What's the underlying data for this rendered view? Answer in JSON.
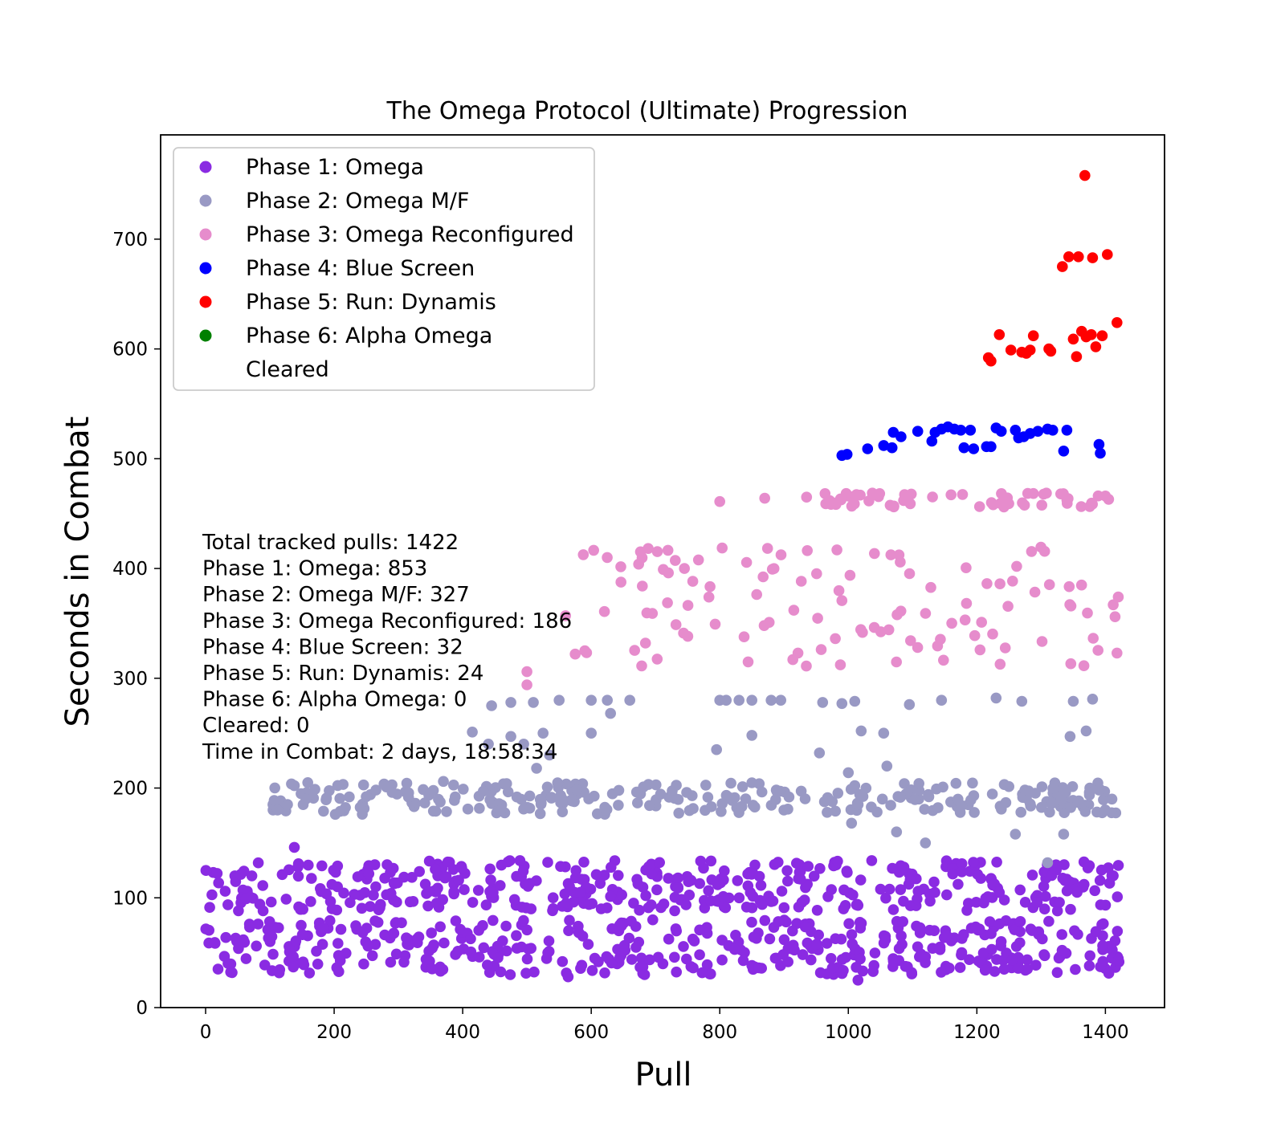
{
  "chart_data": {
    "type": "scatter",
    "title": "The Omega Protocol (Ultimate) Progression",
    "xlabel": "Pull",
    "ylabel": "Seconds in Combat",
    "xlim": [
      -70,
      1492
    ],
    "ylim": [
      0,
      795
    ],
    "xticks": [
      0,
      200,
      400,
      600,
      800,
      1000,
      1200,
      1400
    ],
    "yticks": [
      0,
      100,
      200,
      300,
      400,
      500,
      600,
      700
    ],
    "grid": false,
    "legend_position": "upper-left",
    "series": [
      {
        "name": "Phase 1: Omega",
        "color": "#8a2be2",
        "sampled": true,
        "bands": [
          {
            "count": 420,
            "x_range": [
              0,
              1422
            ],
            "y_range": [
              30,
              80
            ]
          },
          {
            "count": 400,
            "x_range": [
              0,
              1422
            ],
            "y_range": [
              88,
              134
            ]
          }
        ],
        "points": [
          [
            138,
            146
          ],
          [
            1015,
            25
          ],
          [
            564,
            28
          ],
          [
            683,
            30
          ],
          [
            1396,
            42
          ],
          [
            1410,
            45
          ],
          [
            1420,
            43
          ],
          [
            1375,
            38
          ],
          [
            975,
            36
          ]
        ]
      },
      {
        "name": "Phase 2: Omega M/F",
        "color": "#9999c4",
        "sampled": true,
        "bands": [
          {
            "count": 280,
            "x_range": [
              100,
              1422
            ],
            "y_range": [
              176,
              205
            ]
          }
        ],
        "points": [
          [
            105,
            180
          ],
          [
            112,
            180
          ],
          [
            156,
            190
          ],
          [
            370,
            206
          ],
          [
            445,
            275
          ],
          [
            475,
            278
          ],
          [
            415,
            251
          ],
          [
            440,
            240
          ],
          [
            475,
            247
          ],
          [
            495,
            240
          ],
          [
            510,
            278
          ],
          [
            515,
            218
          ],
          [
            525,
            250
          ],
          [
            535,
            230
          ],
          [
            550,
            280
          ],
          [
            600,
            280
          ],
          [
            625,
            280
          ],
          [
            630,
            268
          ],
          [
            600,
            250
          ],
          [
            660,
            280
          ],
          [
            800,
            280
          ],
          [
            810,
            280
          ],
          [
            830,
            280
          ],
          [
            850,
            280
          ],
          [
            880,
            280
          ],
          [
            895,
            280
          ],
          [
            960,
            278
          ],
          [
            990,
            277
          ],
          [
            1010,
            279
          ],
          [
            850,
            248
          ],
          [
            955,
            232
          ],
          [
            795,
            235
          ],
          [
            1000,
            214
          ],
          [
            1005,
            168
          ],
          [
            1020,
            252
          ],
          [
            1055,
            250
          ],
          [
            1060,
            220
          ],
          [
            1075,
            160
          ],
          [
            1120,
            150
          ],
          [
            1095,
            276
          ],
          [
            1145,
            280
          ],
          [
            1230,
            282
          ],
          [
            1270,
            279
          ],
          [
            1260,
            158
          ],
          [
            1310,
            132
          ],
          [
            1335,
            158
          ],
          [
            1345,
            247
          ],
          [
            1350,
            279
          ],
          [
            1370,
            252
          ],
          [
            1380,
            281
          ],
          [
            1338,
            196
          ],
          [
            1375,
            196
          ]
        ]
      },
      {
        "name": "Phase 3: Omega Reconfigured",
        "color": "#e68ccc",
        "sampled": true,
        "bands": [
          {
            "count": 55,
            "x_range": [
              960,
              1410
            ],
            "y_range": [
              456,
              469
            ]
          },
          {
            "count": 110,
            "x_range": [
              580,
              1420
            ],
            "y_range": [
              310,
              420
            ]
          }
        ],
        "points": [
          [
            500,
            306
          ],
          [
            500,
            294
          ],
          [
            560,
            357
          ],
          [
            575,
            322
          ],
          [
            590,
            325
          ],
          [
            800,
            461
          ],
          [
            870,
            464
          ],
          [
            935,
            465
          ],
          [
            720,
            396
          ],
          [
            745,
            400
          ],
          [
            1400,
            466
          ],
          [
            1405,
            463
          ],
          [
            1418,
            323
          ],
          [
            1420,
            374
          ],
          [
            1415,
            356
          ]
        ]
      },
      {
        "name": "Phase 4: Blue Screen",
        "color": "#0000ff",
        "sampled": false,
        "points": [
          [
            990,
            503
          ],
          [
            998,
            504
          ],
          [
            1030,
            509
          ],
          [
            1055,
            512
          ],
          [
            1068,
            510
          ],
          [
            1070,
            524
          ],
          [
            1082,
            520
          ],
          [
            1108,
            525
          ],
          [
            1130,
            516
          ],
          [
            1135,
            524
          ],
          [
            1145,
            527
          ],
          [
            1155,
            529
          ],
          [
            1165,
            527
          ],
          [
            1175,
            526
          ],
          [
            1180,
            510
          ],
          [
            1190,
            526
          ],
          [
            1195,
            509
          ],
          [
            1215,
            511
          ],
          [
            1222,
            511
          ],
          [
            1230,
            528
          ],
          [
            1238,
            525
          ],
          [
            1260,
            526
          ],
          [
            1265,
            519
          ],
          [
            1273,
            520
          ],
          [
            1283,
            523
          ],
          [
            1295,
            525
          ],
          [
            1310,
            527
          ],
          [
            1318,
            526
          ],
          [
            1335,
            507
          ],
          [
            1340,
            526
          ],
          [
            1390,
            513
          ],
          [
            1392,
            505
          ]
        ]
      },
      {
        "name": "Phase 5: Run: Dynamis",
        "color": "#ff0000",
        "sampled": false,
        "points": [
          [
            1218,
            592
          ],
          [
            1222,
            589
          ],
          [
            1235,
            613
          ],
          [
            1253,
            599
          ],
          [
            1270,
            597
          ],
          [
            1277,
            596
          ],
          [
            1283,
            599
          ],
          [
            1288,
            612
          ],
          [
            1312,
            600
          ],
          [
            1315,
            598
          ],
          [
            1333,
            675
          ],
          [
            1343,
            684
          ],
          [
            1350,
            609
          ],
          [
            1355,
            593
          ],
          [
            1358,
            684
          ],
          [
            1363,
            616
          ],
          [
            1368,
            758
          ],
          [
            1370,
            611
          ],
          [
            1378,
            613
          ],
          [
            1380,
            683
          ],
          [
            1385,
            602
          ],
          [
            1403,
            686
          ],
          [
            1418,
            624
          ],
          [
            1395,
            612
          ]
        ]
      },
      {
        "name": "Phase 6: Alpha Omega",
        "color": "#008000",
        "sampled": false,
        "points": []
      },
      {
        "name": "Cleared",
        "color": "#ffffff",
        "sampled": false,
        "points": []
      }
    ],
    "annotations": [
      "Total tracked pulls: 1422",
      "Phase 1: Omega: 853",
      "Phase 2: Omega M/F: 327",
      "Phase 3: Omega Reconfigured: 186",
      "Phase 4: Blue Screen: 32",
      "Phase 5: Run: Dynamis: 24",
      "Phase 6: Alpha Omega: 0",
      "Cleared: 0",
      "Time in Combat: 2 days, 18:58:34"
    ]
  }
}
